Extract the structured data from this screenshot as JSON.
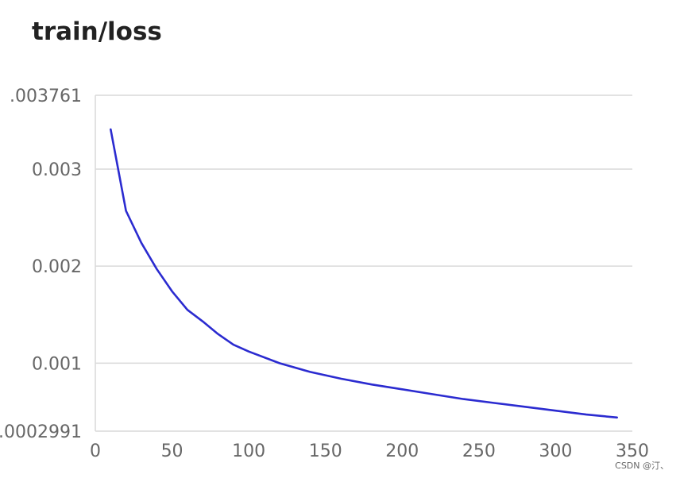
{
  "chart_data": {
    "type": "line",
    "title": "train/loss",
    "xlabel": "",
    "ylabel": "",
    "xlim": [
      0,
      350
    ],
    "ylim": [
      0.0002991,
      0.003761
    ],
    "x_ticks": [
      0,
      50,
      100,
      150,
      200,
      250,
      300,
      350
    ],
    "y_ticks": [
      0.0002991,
      0.001,
      0.002,
      0.003,
      0.003761
    ],
    "y_tick_labels": [
      ".0002991",
      "0.001",
      "0.002",
      "0.003",
      ".003761"
    ],
    "grid": "horizontal",
    "series": [
      {
        "color": "#2b2bd0",
        "x": [
          10,
          20,
          30,
          40,
          50,
          60,
          70,
          80,
          90,
          100,
          120,
          140,
          160,
          180,
          200,
          220,
          240,
          260,
          280,
          300,
          320,
          340
        ],
        "y": [
          0.00341,
          0.00257,
          0.00224,
          0.00197,
          0.00174,
          0.00155,
          0.00143,
          0.0013,
          0.00119,
          0.00112,
          0.001,
          0.00091,
          0.00084,
          0.00078,
          0.00073,
          0.00068,
          0.00063,
          0.00059,
          0.00055,
          0.00051,
          0.00047,
          0.00044
        ]
      }
    ]
  },
  "watermark": "CSDN @汀、"
}
